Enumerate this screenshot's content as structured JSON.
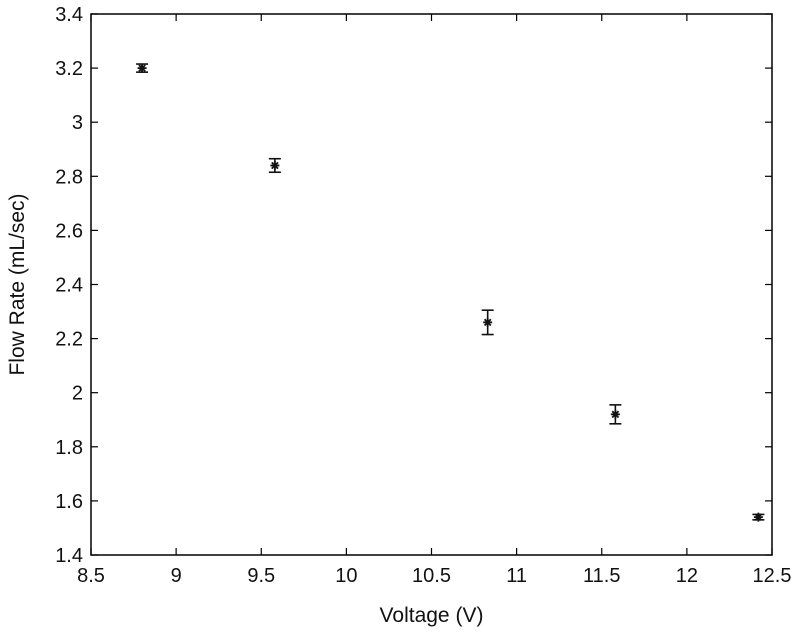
{
  "chart_data": {
    "type": "scatter",
    "title": "",
    "xlabel": "Voltage (V)",
    "ylabel": "Flow Rate (mL/sec)",
    "xlim": [
      8.5,
      12.5
    ],
    "ylim": [
      1.4,
      3.4
    ],
    "xticks": [
      8.5,
      9,
      9.5,
      10,
      10.5,
      11,
      11.5,
      12,
      12.5
    ],
    "yticks": [
      1.4,
      1.6,
      1.8,
      2,
      2.2,
      2.4,
      2.6,
      2.8,
      3,
      3.2,
      3.4
    ],
    "xtick_labels": [
      "8.5",
      "9",
      "9.5",
      "10",
      "10.5",
      "11",
      "11.5",
      "12",
      "12.5"
    ],
    "ytick_labels": [
      "1.4",
      "1.6",
      "1.8",
      "2",
      "2.2",
      "2.4",
      "2.6",
      "2.8",
      "3",
      "3.2",
      "3.4"
    ],
    "grid": false,
    "series": [
      {
        "x": [
          8.8,
          9.58,
          10.83,
          11.58,
          12.42
        ],
        "y": [
          3.2,
          2.84,
          2.26,
          1.92,
          1.54
        ],
        "error": [
          0.015,
          0.025,
          0.045,
          0.035,
          0.01
        ],
        "marker": "star",
        "color": "#111111"
      }
    ]
  }
}
